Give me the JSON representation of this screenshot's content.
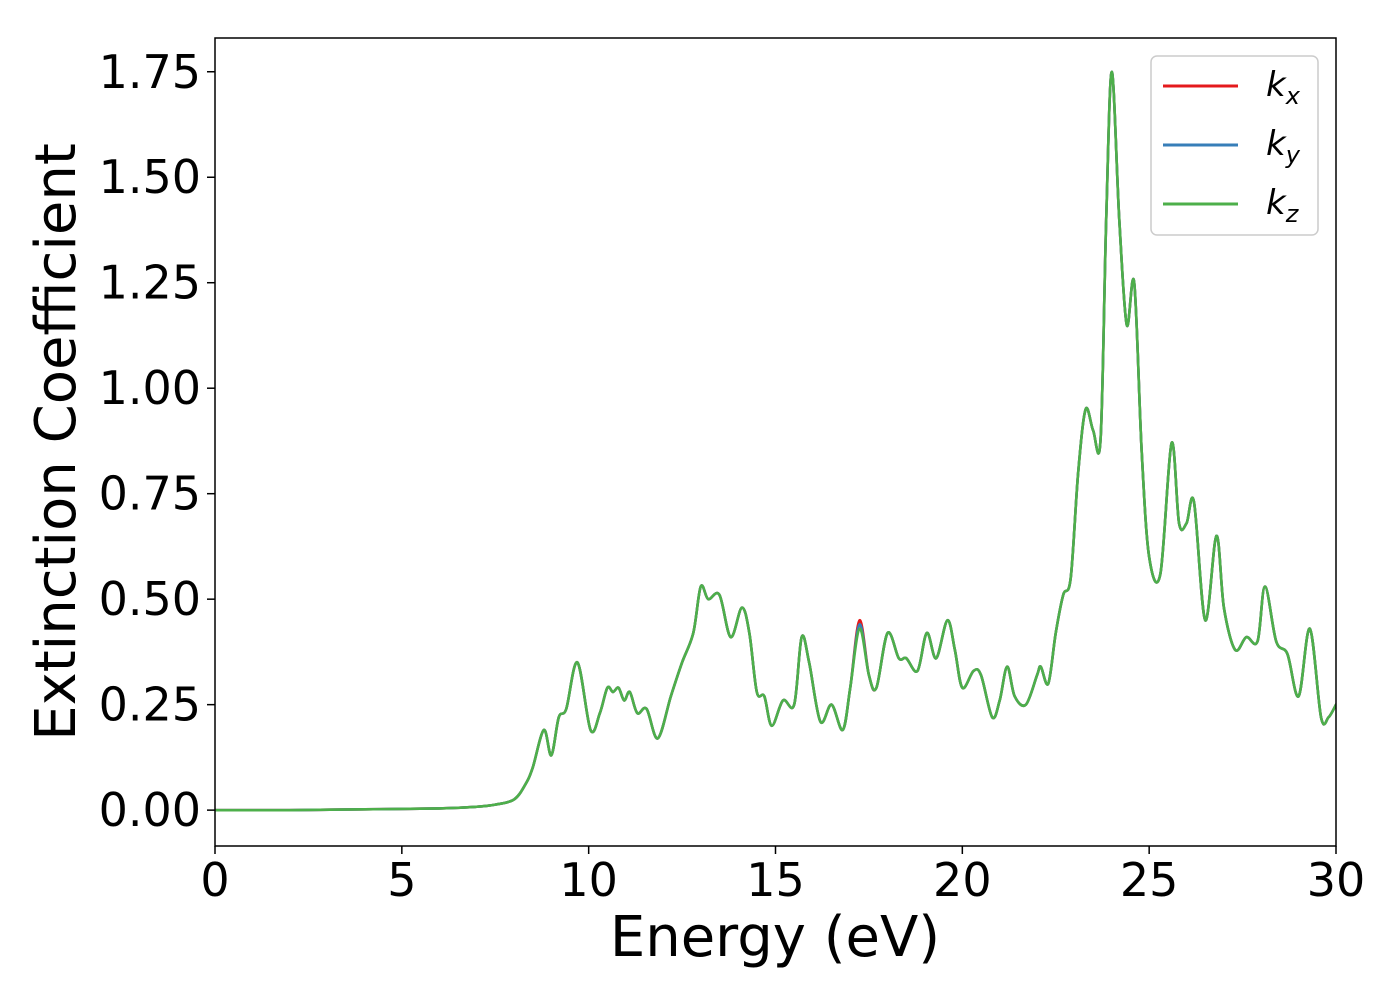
{
  "chart_data": {
    "type": "line",
    "title": "",
    "xlabel": "Energy (eV)",
    "ylabel": "Extinction Coefficient",
    "xlim": [
      0,
      30
    ],
    "ylim": [
      -0.085,
      1.83
    ],
    "xticks": [
      0,
      5,
      10,
      15,
      20,
      25,
      30
    ],
    "xtick_labels": [
      "0",
      "5",
      "10",
      "15",
      "20",
      "25",
      "30"
    ],
    "yticks": [
      0,
      0.25,
      0.5,
      0.75,
      1.0,
      1.25,
      1.5,
      1.75
    ],
    "ytick_labels": [
      "0.00",
      "0.25",
      "0.50",
      "0.75",
      "1.00",
      "1.25",
      "1.50",
      "1.75"
    ],
    "grid": false,
    "legend_position": "top-right",
    "x": [
      0,
      2,
      4,
      6,
      7,
      7.5,
      8,
      8.3,
      8.5,
      8.8,
      9.0,
      9.2,
      9.4,
      9.7,
      10.05,
      10.3,
      10.5,
      10.65,
      10.8,
      10.95,
      11.1,
      11.3,
      11.55,
      11.85,
      12.2,
      12.5,
      12.8,
      13.0,
      13.2,
      13.5,
      13.8,
      14.1,
      14.3,
      14.5,
      14.7,
      14.9,
      15.2,
      15.5,
      15.7,
      15.9,
      16.2,
      16.5,
      16.8,
      17.0,
      17.25,
      17.5,
      17.7,
      18.0,
      18.3,
      18.5,
      18.8,
      19.05,
      19.3,
      19.6,
      19.8,
      20.0,
      20.3,
      20.5,
      20.8,
      21.0,
      21.2,
      21.4,
      21.7,
      22.0,
      22.1,
      22.3,
      22.5,
      22.7,
      22.9,
      23.1,
      23.3,
      23.5,
      23.7,
      23.85,
      24.0,
      24.2,
      24.4,
      24.6,
      24.8,
      25.0,
      25.3,
      25.6,
      25.8,
      26.0,
      26.2,
      26.5,
      26.8,
      27.0,
      27.3,
      27.6,
      27.9,
      28.1,
      28.4,
      28.7,
      29.0,
      29.3,
      29.6,
      29.8,
      30.0
    ],
    "series": [
      {
        "name": "k_x",
        "color": "#e41a1c",
        "y": [
          0,
          0,
          0.002,
          0.004,
          0.008,
          0.013,
          0.025,
          0.06,
          0.1,
          0.19,
          0.13,
          0.22,
          0.24,
          0.35,
          0.19,
          0.23,
          0.29,
          0.28,
          0.29,
          0.26,
          0.28,
          0.23,
          0.24,
          0.17,
          0.27,
          0.35,
          0.42,
          0.53,
          0.5,
          0.51,
          0.41,
          0.48,
          0.42,
          0.28,
          0.27,
          0.2,
          0.26,
          0.25,
          0.41,
          0.35,
          0.21,
          0.25,
          0.19,
          0.29,
          0.45,
          0.32,
          0.29,
          0.42,
          0.36,
          0.36,
          0.33,
          0.42,
          0.36,
          0.45,
          0.38,
          0.29,
          0.33,
          0.32,
          0.22,
          0.26,
          0.34,
          0.27,
          0.25,
          0.32,
          0.34,
          0.3,
          0.42,
          0.51,
          0.55,
          0.8,
          0.95,
          0.9,
          0.88,
          1.4,
          1.75,
          1.4,
          1.15,
          1.25,
          0.85,
          0.6,
          0.56,
          0.87,
          0.68,
          0.68,
          0.73,
          0.45,
          0.65,
          0.48,
          0.38,
          0.41,
          0.4,
          0.53,
          0.4,
          0.37,
          0.27,
          0.43,
          0.22,
          0.22,
          0.25
        ]
      },
      {
        "name": "k_y",
        "color": "#377eb8",
        "y": [
          0,
          0,
          0.002,
          0.004,
          0.008,
          0.013,
          0.025,
          0.06,
          0.1,
          0.19,
          0.13,
          0.22,
          0.24,
          0.35,
          0.19,
          0.23,
          0.29,
          0.28,
          0.29,
          0.26,
          0.28,
          0.23,
          0.24,
          0.17,
          0.27,
          0.35,
          0.42,
          0.53,
          0.5,
          0.51,
          0.41,
          0.48,
          0.42,
          0.28,
          0.27,
          0.2,
          0.26,
          0.25,
          0.41,
          0.35,
          0.21,
          0.25,
          0.19,
          0.29,
          0.44,
          0.32,
          0.29,
          0.42,
          0.36,
          0.36,
          0.33,
          0.42,
          0.36,
          0.45,
          0.38,
          0.29,
          0.33,
          0.32,
          0.22,
          0.26,
          0.34,
          0.27,
          0.25,
          0.32,
          0.34,
          0.3,
          0.42,
          0.51,
          0.55,
          0.8,
          0.95,
          0.9,
          0.88,
          1.4,
          1.75,
          1.4,
          1.15,
          1.25,
          0.85,
          0.6,
          0.56,
          0.87,
          0.68,
          0.68,
          0.73,
          0.45,
          0.65,
          0.48,
          0.38,
          0.41,
          0.4,
          0.53,
          0.4,
          0.37,
          0.27,
          0.43,
          0.22,
          0.22,
          0.25
        ]
      },
      {
        "name": "k_z",
        "color": "#4daf4a",
        "y": [
          0,
          0,
          0.002,
          0.004,
          0.008,
          0.013,
          0.025,
          0.06,
          0.1,
          0.19,
          0.13,
          0.22,
          0.24,
          0.35,
          0.19,
          0.23,
          0.29,
          0.28,
          0.29,
          0.26,
          0.28,
          0.23,
          0.24,
          0.17,
          0.27,
          0.35,
          0.42,
          0.53,
          0.5,
          0.51,
          0.41,
          0.48,
          0.42,
          0.28,
          0.27,
          0.2,
          0.26,
          0.25,
          0.41,
          0.35,
          0.21,
          0.25,
          0.19,
          0.29,
          0.43,
          0.32,
          0.29,
          0.42,
          0.36,
          0.36,
          0.33,
          0.42,
          0.36,
          0.45,
          0.38,
          0.29,
          0.33,
          0.32,
          0.22,
          0.26,
          0.34,
          0.27,
          0.25,
          0.32,
          0.34,
          0.3,
          0.42,
          0.51,
          0.55,
          0.8,
          0.95,
          0.9,
          0.88,
          1.4,
          1.75,
          1.4,
          1.15,
          1.25,
          0.85,
          0.6,
          0.56,
          0.87,
          0.68,
          0.68,
          0.73,
          0.45,
          0.65,
          0.48,
          0.38,
          0.41,
          0.4,
          0.53,
          0.4,
          0.37,
          0.27,
          0.43,
          0.22,
          0.22,
          0.25
        ]
      }
    ],
    "legend": [
      {
        "base": "k",
        "sub": "x",
        "color": "#e41a1c"
      },
      {
        "base": "k",
        "sub": "y",
        "color": "#377eb8"
      },
      {
        "base": "k",
        "sub": "z",
        "color": "#4daf4a"
      }
    ]
  }
}
